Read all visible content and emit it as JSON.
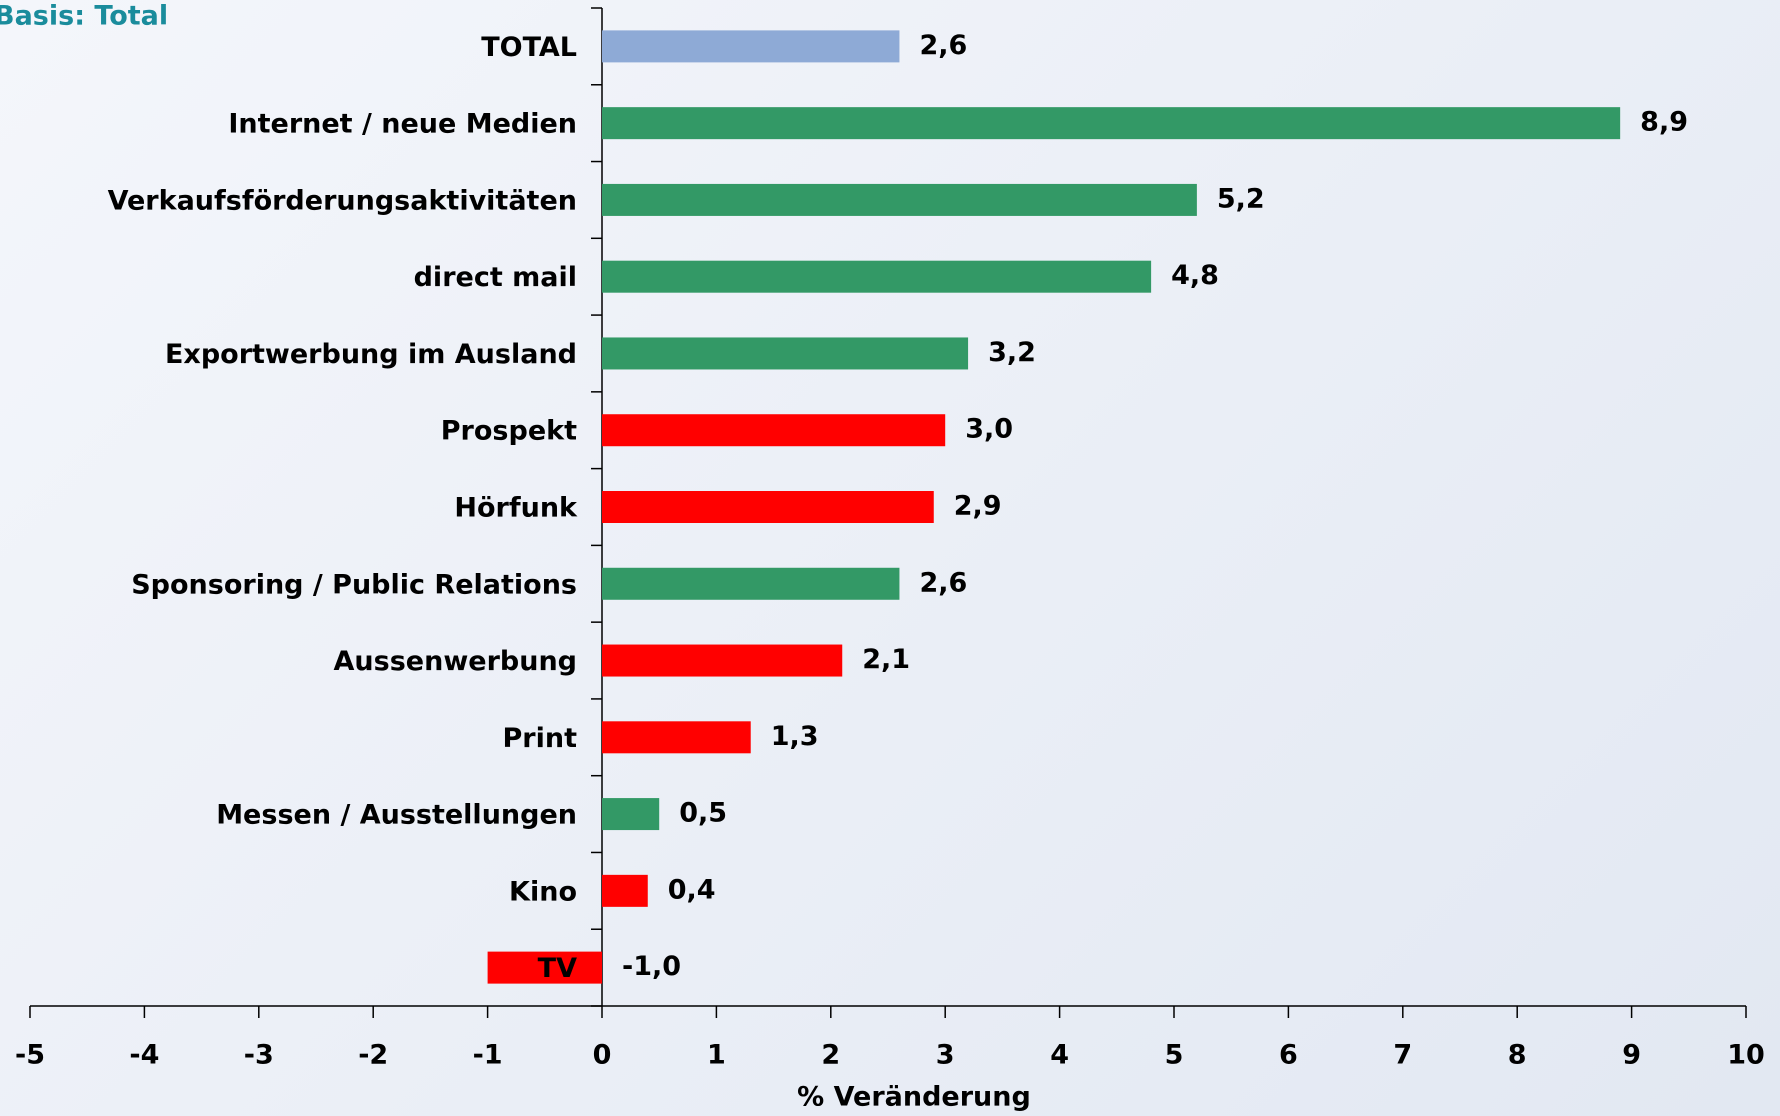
{
  "chart_data": {
    "type": "bar",
    "orientation": "horizontal",
    "title": "Basis: Total",
    "xlabel": "% Veränderung",
    "categories": [
      "TOTAL",
      "Internet / neue Medien",
      "Verkaufsförderungsaktivitäten",
      "direct mail",
      "Exportwerbung im Ausland",
      "Prospekt",
      "Hörfunk",
      "Sponsoring / Public Relations",
      "Aussenwerbung",
      "Print",
      "Messen / Ausstellungen",
      "Kino",
      "TV"
    ],
    "values": [
      2.6,
      8.9,
      5.2,
      4.8,
      3.2,
      3.0,
      2.9,
      2.6,
      2.1,
      1.3,
      0.5,
      0.4,
      -1.0
    ],
    "value_labels": [
      "2,6",
      "8,9",
      "5,2",
      "4,8",
      "3,2",
      "3,0",
      "2,9",
      "2,6",
      "2,1",
      "1,3",
      "0,5",
      "0,4",
      "-1,0"
    ],
    "colors": [
      "#8eaad6",
      "#339966",
      "#339966",
      "#339966",
      "#339966",
      "#ff0000",
      "#ff0000",
      "#339966",
      "#ff0000",
      "#ff0000",
      "#339966",
      "#ff0000",
      "#ff0000"
    ],
    "xlim": [
      -5,
      10
    ],
    "xticks": [
      -5,
      -4,
      -3,
      -2,
      -1,
      0,
      1,
      2,
      3,
      4,
      5,
      6,
      7,
      8,
      9,
      10
    ],
    "grid": false
  }
}
